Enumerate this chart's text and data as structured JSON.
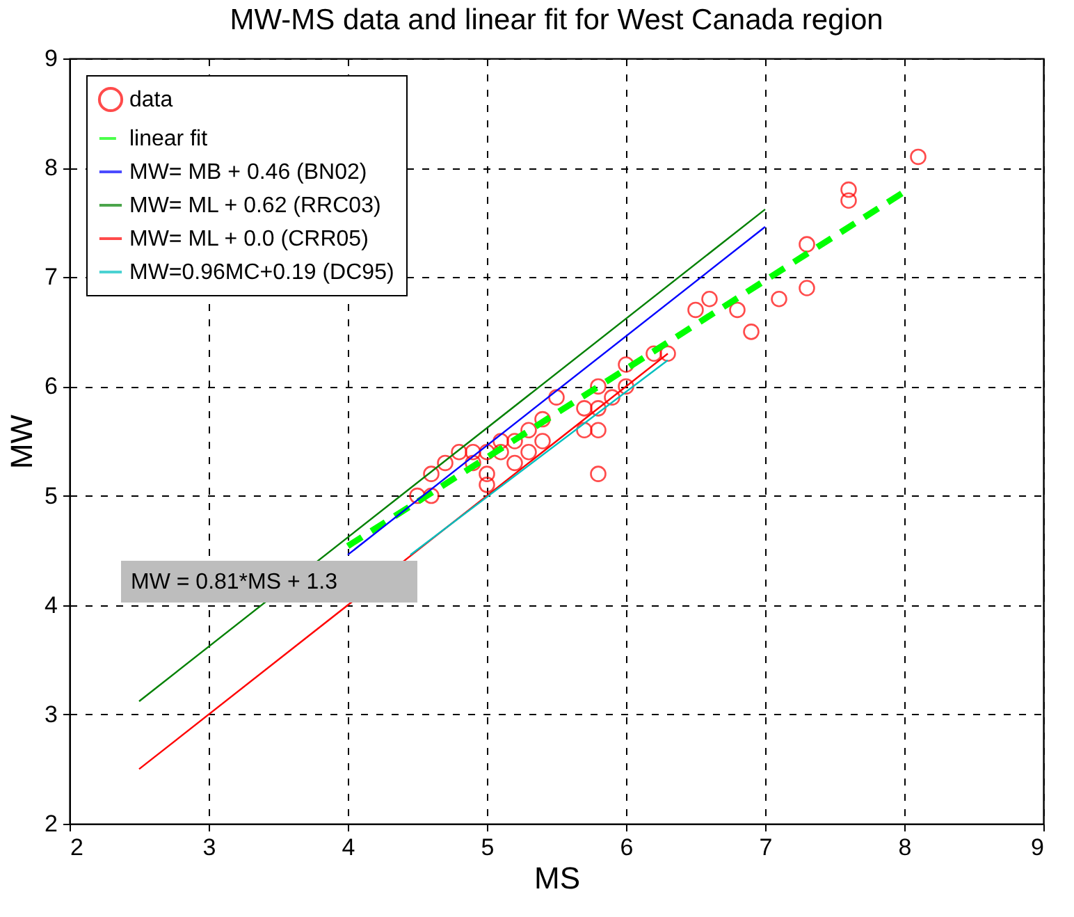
{
  "chart_data": {
    "type": "scatter",
    "title": "MW-MS data and linear fit for West Canada region",
    "xlabel": "MS",
    "ylabel": "MW",
    "xlim": [
      2,
      9
    ],
    "ylim": [
      2,
      9
    ],
    "xticks": [
      2,
      3,
      4,
      5,
      6,
      7,
      8,
      9
    ],
    "yticks": [
      2,
      3,
      4,
      5,
      6,
      7,
      8,
      9
    ],
    "grid": true,
    "legend": "top left",
    "annotations": [
      "MW = 0.81*MS + 1.3"
    ],
    "series": [
      {
        "name": "data",
        "marker": "circle",
        "color": "#ff0000",
        "x": [
          8.1,
          7.6,
          7.6,
          7.3,
          7.3,
          7.1,
          6.9,
          6.8,
          6.5,
          6.6,
          6.2,
          6.3,
          6.0,
          6.0,
          5.8,
          5.8,
          5.9,
          5.7,
          5.8,
          5.8,
          5.5,
          5.7,
          5.4,
          5.4,
          5.3,
          5.3,
          5.2,
          5.2,
          5.1,
          5.1,
          5.0,
          5.0,
          5.0,
          4.9,
          4.9,
          4.8,
          4.7,
          4.6,
          4.6,
          4.5
        ],
        "values": [
          8.1,
          7.8,
          7.7,
          7.3,
          6.9,
          6.8,
          6.5,
          6.7,
          6.7,
          6.8,
          6.3,
          6.3,
          6.2,
          6.0,
          6.0,
          5.8,
          5.9,
          5.6,
          5.6,
          5.2,
          5.9,
          5.8,
          5.7,
          5.5,
          5.6,
          5.4,
          5.5,
          5.3,
          5.4,
          5.5,
          5.4,
          5.2,
          5.1,
          5.4,
          5.3,
          5.4,
          5.3,
          5.2,
          5.0,
          5.0
        ]
      },
      {
        "name": "linear fit",
        "type": "line",
        "line_style": "dashed",
        "color": "#00ff00",
        "x": [
          4,
          8
        ],
        "values": [
          4.54,
          7.78
        ]
      },
      {
        "name": "MW= MB + 0.46 (BN02)",
        "type": "line",
        "line_style": "solid",
        "color": "#0000ff",
        "x": [
          4,
          7
        ],
        "values": [
          4.46,
          7.46
        ]
      },
      {
        "name": "MW= ML + 0.62 (RRC03)",
        "type": "line",
        "line_style": "solid",
        "color": "#008000",
        "x": [
          2.5,
          7
        ],
        "values": [
          3.12,
          7.62
        ]
      },
      {
        "name": "MW= ML + 0.0  (CRR05)",
        "type": "line",
        "line_style": "solid",
        "color": "#ff0000",
        "x": [
          2.5,
          6.3
        ],
        "values": [
          2.5,
          6.3
        ]
      },
      {
        "name": "MW=0.96MC+0.19 (DC95)",
        "type": "line",
        "line_style": "solid",
        "color": "#00bfbf",
        "x": [
          4.45,
          6.3
        ],
        "values": [
          4.46,
          6.24
        ]
      }
    ]
  }
}
